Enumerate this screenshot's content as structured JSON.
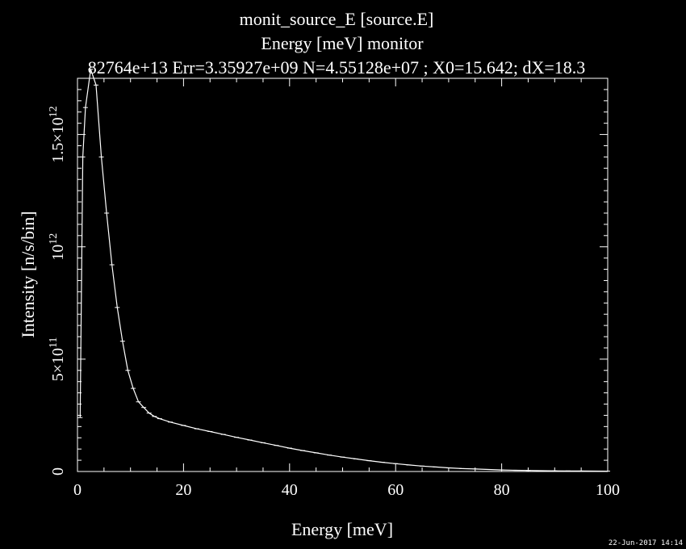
{
  "chart_data": {
    "type": "line",
    "title": "monit_source_E [source.E]",
    "subtitle": "Energy [meV] monitor",
    "stats_line": "82764e+13 Err=3.35927e+09 N=4.55128e+07 ; X0=15.642; dX=18.3",
    "xlabel": "Energy [meV]",
    "ylabel": "Intensity [n/s/bin]",
    "xlim": [
      0,
      100
    ],
    "ylim": [
      0,
      1750000000000
    ],
    "x_ticks": [
      0,
      20,
      40,
      60,
      80,
      100
    ],
    "x_tick_labels": [
      "0",
      "20",
      "40",
      "60",
      "80",
      "100"
    ],
    "y_ticks": [
      {
        "value": 0,
        "mantissa": "0",
        "exp": ""
      },
      {
        "value": 500000000000,
        "mantissa": "5×10",
        "exp": "11"
      },
      {
        "value": 1000000000000,
        "mantissa": "10",
        "exp": "12"
      },
      {
        "value": 1500000000000,
        "mantissa": "1.5×10",
        "exp": "12"
      }
    ],
    "grid": false,
    "colors": {
      "background": "#000000",
      "foreground": "#ffffff",
      "line": "#ffffff"
    },
    "series": [
      {
        "x": [
          0.5,
          1.0,
          1.5,
          2.5,
          3.5,
          4.5,
          5.5,
          6.5,
          7.5,
          8.5,
          9.5,
          10.5,
          11.5,
          12.5,
          13.5,
          14.5,
          15.5,
          17.5,
          20,
          22.5,
          25,
          27.5,
          30,
          32.5,
          35,
          37.5,
          40,
          42.5,
          45,
          47.5,
          50,
          52.5,
          55,
          57.5,
          60,
          62.5,
          65,
          67.5,
          70,
          72.5,
          75,
          77.5,
          80,
          82.5,
          85,
          87.5,
          90,
          92.5,
          95,
          97.5,
          100
        ],
        "y": [
          240000000000,
          1400000000000,
          1620000000000,
          1790000000000,
          1720000000000,
          1400000000000,
          1150000000000,
          920000000000,
          730000000000,
          580000000000,
          450000000000,
          370000000000,
          310000000000,
          285000000000,
          260000000000,
          245000000000,
          235000000000,
          220000000000,
          205000000000,
          190000000000,
          178000000000,
          165000000000,
          152000000000,
          140000000000,
          128000000000,
          116000000000,
          104000000000,
          93000000000,
          83000000000,
          73000000000,
          64000000000,
          56000000000,
          48000000000,
          41000000000,
          35000000000,
          29000000000,
          24000000000,
          20000000000,
          16000000000,
          13000000000,
          11000000000,
          9000000000,
          7000000000,
          5500000000,
          4500000000,
          3500000000,
          3000000000,
          2500000000,
          2000000000,
          1800000000,
          1500000000
        ]
      }
    ]
  },
  "timestamp": "22-Jun-2017 14:14"
}
